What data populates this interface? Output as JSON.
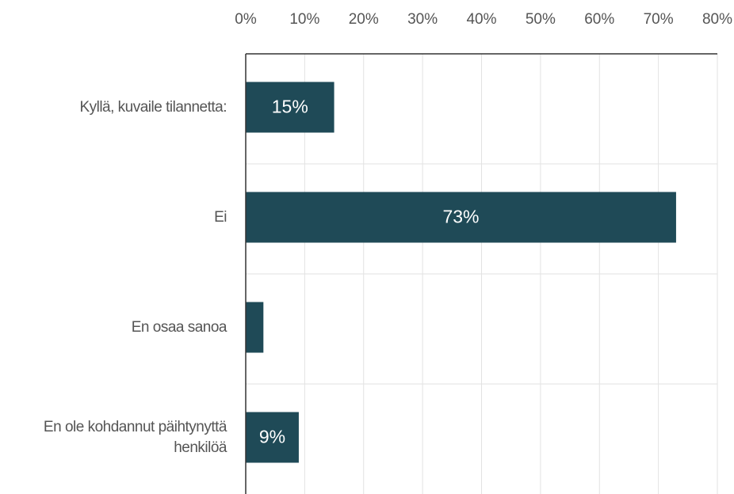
{
  "chart_data": {
    "type": "bar",
    "orientation": "horizontal",
    "categories": [
      "Kyllä, kuvaile tilannetta:",
      "Ei",
      "En osaa sanoa",
      "En ole kohdannut päihtynyttä henkilöä"
    ],
    "values": [
      15,
      73,
      3,
      9
    ],
    "value_labels": [
      "15%",
      "73%",
      null,
      "9%"
    ],
    "color": "#1f4a57",
    "xlim": [
      0,
      80
    ],
    "xticks": [
      {
        "value": 0,
        "label": "0%"
      },
      {
        "value": 10,
        "label": "10%"
      },
      {
        "value": 20,
        "label": "20%"
      },
      {
        "value": 30,
        "label": "30%"
      },
      {
        "value": 40,
        "label": "40%"
      },
      {
        "value": 50,
        "label": "50%"
      },
      {
        "value": 60,
        "label": "60%"
      },
      {
        "value": 70,
        "label": "70%"
      },
      {
        "value": 80,
        "label": "80%"
      }
    ],
    "grid": true
  }
}
